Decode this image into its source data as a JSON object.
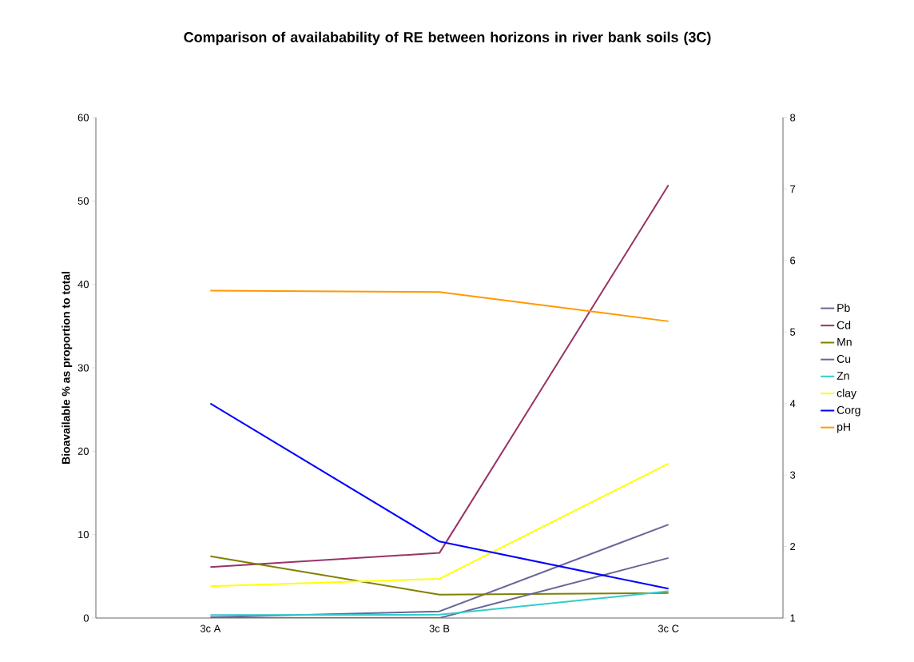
{
  "chart_data": {
    "type": "line",
    "title": "Comparison of availabability of RE between horizons in river bank soils (3C)",
    "ylabel": "Bioavailable % as proportion to total",
    "categories": [
      "3c  A",
      "3c  B",
      "3c  C"
    ],
    "series": [
      {
        "name": "Pb",
        "color": "#666699",
        "values": [
          0.1,
          0.8,
          11.2
        ]
      },
      {
        "name": "Cd",
        "color": "#993366",
        "values": [
          6.1,
          7.8,
          51.9
        ]
      },
      {
        "name": "Mn",
        "color": "#808000",
        "values": [
          7.4,
          2.8,
          3.0
        ]
      },
      {
        "name": "Cu",
        "color": "#666699",
        "values": [
          0,
          0,
          7.2
        ]
      },
      {
        "name": "Zn",
        "color": "#33cccc",
        "values": [
          0.35,
          0.4,
          3.2
        ]
      },
      {
        "name": "clay",
        "color": "#ffff00",
        "values": [
          3.8,
          4.7,
          18.5
        ]
      },
      {
        "name": "Corg",
        "color": "#0000ff",
        "axis": "y2",
        "values": [
          4.0,
          2.07,
          1.41
        ]
      },
      {
        "name": "pH",
        "color": "#ff9900",
        "axis": "y2",
        "values": [
          5.58,
          5.56,
          5.15
        ]
      }
    ],
    "ylim": [
      0,
      60
    ],
    "yticks": [
      0,
      10,
      20,
      30,
      40,
      50,
      60
    ],
    "y2lim": [
      1,
      8
    ],
    "y2ticks": [
      1,
      2,
      3,
      4,
      5,
      6,
      7,
      8
    ],
    "legend": "right",
    "grid": false,
    "marker": "none",
    "line_style": "solid"
  }
}
